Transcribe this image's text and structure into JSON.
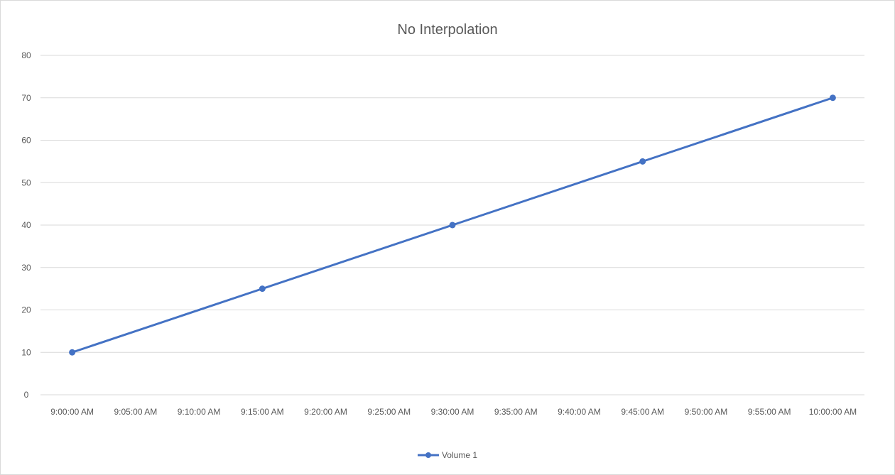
{
  "chart_data": {
    "type": "line",
    "title": "No Interpolation",
    "xlabel": "",
    "ylabel": "",
    "ylim": [
      0,
      80
    ],
    "yticks": [
      0,
      10,
      20,
      30,
      40,
      50,
      60,
      70,
      80
    ],
    "categories": [
      "9:00:00 AM",
      "9:05:00 AM",
      "9:10:00 AM",
      "9:15:00 AM",
      "9:20:00 AM",
      "9:25:00 AM",
      "9:30:00 AM",
      "9:35:00 AM",
      "9:40:00 AM",
      "9:45:00 AM",
      "9:50:00 AM",
      "9:55:00 AM",
      "10:00:00 AM"
    ],
    "series": [
      {
        "name": "Volume 1",
        "color": "#4472c4",
        "points": [
          {
            "x": "9:00:00 AM",
            "y": 10
          },
          {
            "x": "9:15:00 AM",
            "y": 25
          },
          {
            "x": "9:30:00 AM",
            "y": 40
          },
          {
            "x": "9:45:00 AM",
            "y": 55
          },
          {
            "x": "10:00:00 AM",
            "y": 70
          }
        ]
      }
    ],
    "grid": true,
    "legend": "bottom"
  }
}
